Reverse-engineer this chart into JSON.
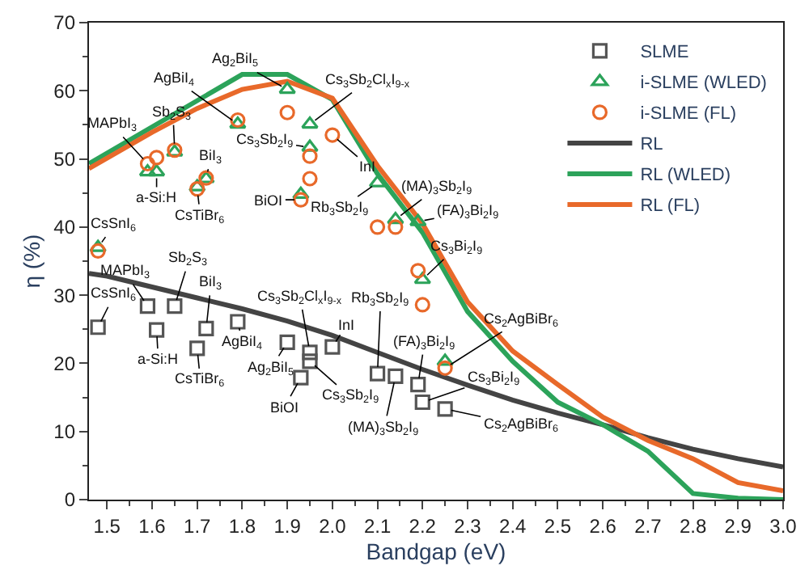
{
  "chart_data": {
    "type": "scatter",
    "xlabel": "Bandgap (eV)",
    "ylabel": "η (%)",
    "xlim": [
      1.46,
      3.0
    ],
    "ylim": [
      0,
      70
    ],
    "xticks": [
      1.5,
      1.6,
      1.7,
      1.8,
      1.9,
      {
        "value": 2.0,
        "label": "2.0"
      },
      2.1,
      2.2,
      2.3,
      2.4,
      2.5,
      2.6,
      2.7,
      2.8,
      2.9,
      {
        "value": 3.0,
        "label": "3.0"
      }
    ],
    "yticks": [
      0,
      10,
      20,
      30,
      40,
      50,
      60,
      70
    ],
    "legend": "top right",
    "series": [
      {
        "name": "SLME",
        "marker": "square",
        "color": "#555555",
        "x": [
          1.48,
          1.59,
          1.61,
          1.65,
          1.7,
          1.72,
          1.79,
          1.9,
          1.93,
          1.95,
          1.95,
          2.0,
          2.1,
          2.14,
          2.19,
          2.2,
          2.25
        ],
        "values": [
          25.3,
          28.4,
          24.9,
          28.4,
          22.2,
          25.1,
          26.1,
          23.1,
          17.9,
          21.6,
          20.3,
          22.4,
          18.5,
          18.1,
          16.9,
          14.3,
          13.3
        ]
      },
      {
        "name": "i-SLME (WLED)",
        "marker": "triangle",
        "color": "#2ca35a",
        "x": [
          1.48,
          1.59,
          1.61,
          1.65,
          1.7,
          1.72,
          1.79,
          1.9,
          1.93,
          1.95,
          1.95,
          2.1,
          2.14,
          2.19,
          2.2,
          2.25
        ],
        "values": [
          37.0,
          48.1,
          48.1,
          51.0,
          45.9,
          47.1,
          55.1,
          60.2,
          44.8,
          55.1,
          51.7,
          46.5,
          41.1,
          40.8,
          32.3,
          20.3
        ]
      },
      {
        "name": "i-SLME (FL)",
        "marker": "circle",
        "color": "#e8692a",
        "x": [
          1.48,
          1.59,
          1.61,
          1.65,
          1.7,
          1.72,
          1.79,
          1.9,
          1.93,
          1.95,
          1.95,
          2.0,
          2.1,
          2.14,
          2.19,
          2.2,
          2.25
        ],
        "values": [
          36.5,
          49.3,
          50.2,
          51.3,
          45.6,
          47.2,
          55.7,
          56.8,
          44.0,
          50.4,
          47.1,
          53.5,
          40.0,
          40.0,
          33.6,
          28.6,
          19.3
        ]
      },
      {
        "name": "RL",
        "type": "line",
        "marker": "none",
        "color": "#444444",
        "x": [
          1.46,
          1.5,
          1.6,
          1.7,
          1.8,
          1.9,
          2.0,
          2.1,
          2.2,
          2.3,
          2.4,
          2.5,
          2.6,
          2.7,
          2.8,
          2.9,
          3.0
        ],
        "values": [
          33.2,
          32.8,
          31.2,
          29.6,
          28.0,
          26.2,
          24.1,
          21.6,
          19.1,
          16.8,
          14.6,
          12.7,
          11.0,
          9.1,
          7.4,
          6.0,
          4.8
        ]
      },
      {
        "name": "RL (WLED)",
        "type": "line",
        "marker": "none",
        "color": "#2ca35a",
        "x": [
          1.46,
          1.8,
          1.9,
          2.0,
          2.1,
          2.2,
          2.3,
          2.4,
          2.5,
          2.6,
          2.7,
          2.8,
          2.9,
          3.0
        ],
        "values": [
          49.3,
          62.4,
          62.4,
          58.7,
          47.8,
          39.2,
          27.6,
          20.3,
          14.3,
          11.0,
          7.1,
          0.9,
          0.2,
          0
        ]
      },
      {
        "name": "RL (FL)",
        "type": "line",
        "marker": "none",
        "color": "#e8692a",
        "x": [
          1.46,
          1.6,
          1.7,
          1.8,
          1.9,
          2.0,
          2.1,
          2.2,
          2.3,
          2.4,
          2.5,
          2.6,
          2.7,
          2.8,
          2.9,
          3.0
        ],
        "values": [
          48.6,
          53.9,
          57.4,
          60.2,
          61.4,
          58.9,
          49.0,
          40.5,
          29.0,
          21.8,
          16.9,
          12.1,
          8.7,
          6.0,
          2.5,
          1.3
        ]
      }
    ],
    "annotations": [
      {
        "text": "CsSnI$_{6}$",
        "x": 1.48,
        "y": 37.0
      },
      {
        "text": "MAPbI$_{3}$",
        "x": 1.59,
        "y": 49.3
      },
      {
        "text": "Sb$_{2}$S$_{3}$",
        "x": 1.65,
        "y": 51.3
      },
      {
        "text": "a-Si:H",
        "x": 1.61,
        "y": 48.1
      },
      {
        "text": "BiI$_{3}$",
        "x": 1.72,
        "y": 47.2
      },
      {
        "text": "CsTiBr$_{6}$",
        "x": 1.7,
        "y": 45.6
      },
      {
        "text": "AgBiI$_{4}$",
        "x": 1.79,
        "y": 55.1
      },
      {
        "text": "Ag$_{2}$BiI$_{5}$",
        "x": 1.9,
        "y": 60.2
      },
      {
        "text": "Cs$_{3}$Sb$_{2}$Cl$_{x}$I$_{9-x}$",
        "x": 1.95,
        "y": 55.1
      },
      {
        "text": "Cs$_{3}$Sb$_{2}$I$_{9}$",
        "x": 1.95,
        "y": 51.7
      },
      {
        "text": "InI",
        "x": 2.0,
        "y": 53.5
      },
      {
        "text": "BiOI",
        "x": 1.93,
        "y": 44.0
      },
      {
        "text": "Rb$_{3}$Sb$_{2}$I$_{9}$",
        "x": 2.1,
        "y": 46.5
      },
      {
        "text": "(MA)$_{3}$Sb$_{2}$I$_{9}$",
        "x": 2.14,
        "y": 41.1
      },
      {
        "text": "(FA)$_{3}$Bi$_{2}$I$_{9}$",
        "x": 2.19,
        "y": 40.8
      },
      {
        "text": "Cs$_{3}$Bi$_{2}$I$_{9}$",
        "x": 2.2,
        "y": 32.3
      },
      {
        "text": "Cs$_{2}$AgBiBr$_{6}$",
        "x": 2.25,
        "y": 19.3
      },
      {
        "text": "CsSnI$_{6}$",
        "x": 1.48,
        "y": 25.3
      },
      {
        "text": "MAPbI$_{3}$",
        "x": 1.59,
        "y": 28.4
      },
      {
        "text": "Sb$_{2}$S$_{3}$",
        "x": 1.65,
        "y": 28.4
      },
      {
        "text": "BiI$_{3}$",
        "x": 1.72,
        "y": 25.1
      },
      {
        "text": "a-Si:H",
        "x": 1.61,
        "y": 24.9
      },
      {
        "text": "CsTiBr$_{6}$",
        "x": 1.7,
        "y": 22.2
      },
      {
        "text": "AgBiI$_{4}$",
        "x": 1.79,
        "y": 26.1
      },
      {
        "text": "Ag$_{2}$BiI$_{5}$",
        "x": 1.9,
        "y": 23.1
      },
      {
        "text": "BiOI",
        "x": 1.93,
        "y": 17.9
      },
      {
        "text": "Cs$_{3}$Sb$_{2}$Cl$_{x}$I$_{9-x}$",
        "x": 1.95,
        "y": 21.6
      },
      {
        "text": "Cs$_{3}$Sb$_{2}$I$_{9}$",
        "x": 1.95,
        "y": 20.3
      },
      {
        "text": "InI",
        "x": 2.0,
        "y": 22.4
      },
      {
        "text": "Rb$_{3}$Sb$_{2}$I$_{9}$",
        "x": 2.1,
        "y": 18.5
      },
      {
        "text": "(MA)$_{3}$Sb$_{2}$I$_{9}$",
        "x": 2.14,
        "y": 18.1
      },
      {
        "text": "(FA)$_{3}$Bi$_{2}$I$_{9}$",
        "x": 2.19,
        "y": 16.9
      },
      {
        "text": "Cs$_{3}$Bi$_{2}$I$_{9}$",
        "x": 2.2,
        "y": 14.3
      },
      {
        "text": "Cs$_{2}$AgBiBr$_{6}$",
        "x": 2.25,
        "y": 13.3
      }
    ]
  }
}
